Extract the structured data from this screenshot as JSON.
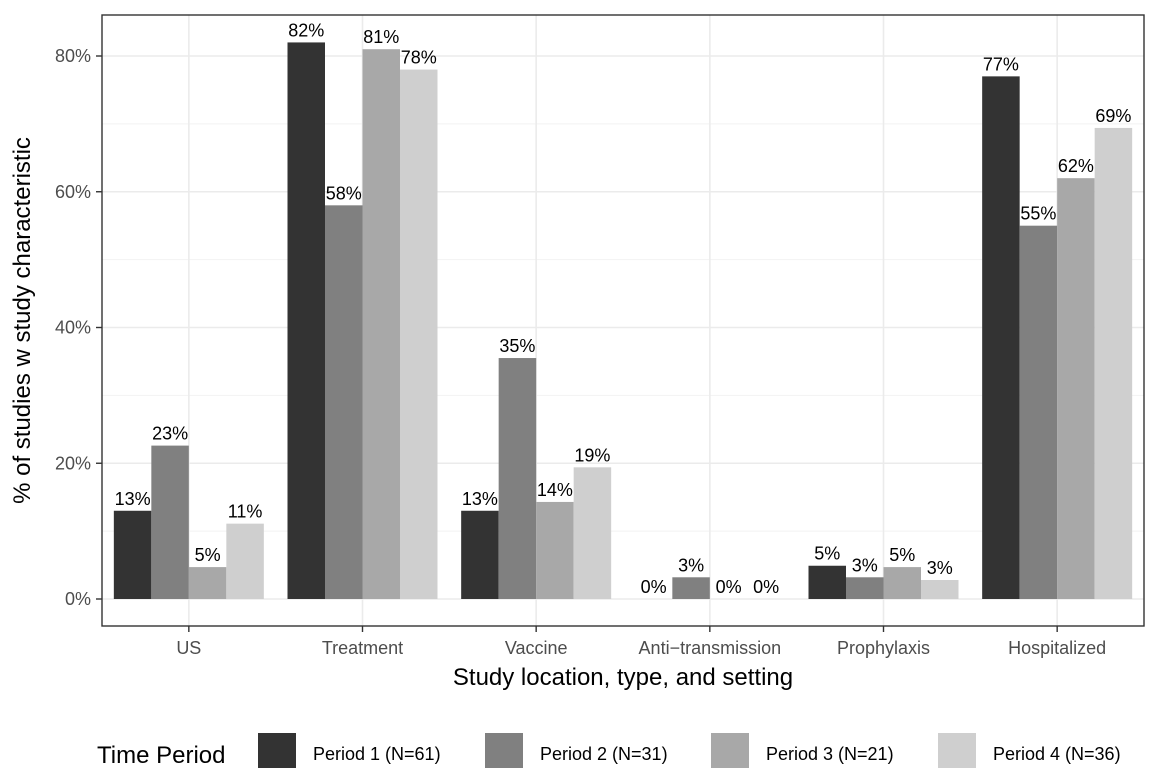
{
  "chart_data": {
    "type": "bar",
    "xlabel": "Study location, type, and setting",
    "ylabel": "% of studies w study characteristic",
    "ylim": [
      0,
      0.84
    ],
    "yticks": [
      0,
      0.2,
      0.4,
      0.6,
      0.8
    ],
    "ytick_labels": [
      "0%",
      "20%",
      "40%",
      "60%",
      "80%"
    ],
    "grid": true,
    "legend_position": "bottom",
    "legend_title": "Time Period",
    "categories": [
      "US",
      "Treatment",
      "Vaccine",
      "Anti−transmission",
      "Prophylaxis",
      "Hospitalized"
    ],
    "series": [
      {
        "name": "Period 1 (N=61)",
        "color": "#333333",
        "values": [
          0.13,
          0.82,
          0.13,
          0.0,
          0.049,
          0.77
        ],
        "labels": [
          "13%",
          "82%",
          "13%",
          "0%",
          "5%",
          "77%"
        ]
      },
      {
        "name": "Period 2 (N=31)",
        "color": "#808080",
        "values": [
          0.226,
          0.58,
          0.355,
          0.032,
          0.032,
          0.55
        ],
        "labels": [
          "23%",
          "58%",
          "35%",
          "3%",
          "3%",
          "55%"
        ]
      },
      {
        "name": "Period 3 (N=21)",
        "color": "#a8a8a8",
        "values": [
          0.047,
          0.81,
          0.143,
          0.0,
          0.047,
          0.62
        ],
        "labels": [
          "5%",
          "81%",
          "14%",
          "0%",
          "5%",
          "62%"
        ]
      },
      {
        "name": "Period 4 (N=36)",
        "color": "#cfcfcf",
        "values": [
          0.111,
          0.78,
          0.194,
          0.0,
          0.028,
          0.694
        ],
        "labels": [
          "11%",
          "78%",
          "19%",
          "0%",
          "3%",
          "69%"
        ]
      }
    ]
  }
}
